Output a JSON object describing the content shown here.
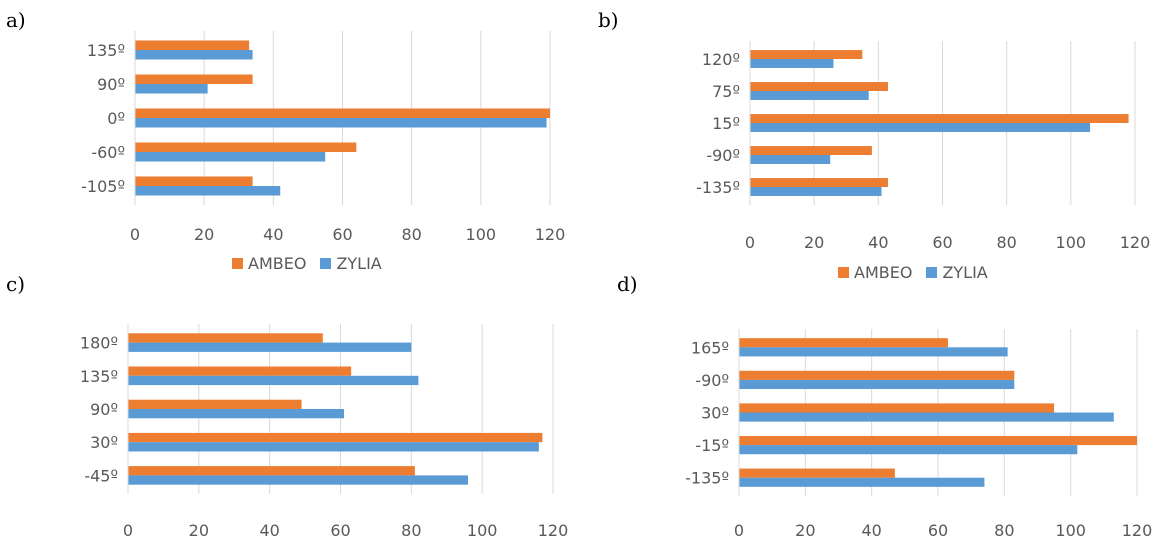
{
  "panels": [
    {
      "label": "a)"
    },
    {
      "label": "b)"
    },
    {
      "label": "c)"
    },
    {
      "label": "d)"
    }
  ],
  "legend": {
    "ambeo": "AMBEO",
    "zylia": "ZYLIA"
  },
  "colors": {
    "ambeo": "#ED7D31",
    "zylia": "#5B9BD5",
    "grid": "#D9D9D9",
    "tick": "#595959"
  },
  "chart_data": [
    {
      "type": "bar",
      "orientation": "horizontal",
      "categories": [
        "135º",
        "90º",
        "0º",
        "-60º",
        "-105º"
      ],
      "series": [
        {
          "name": "AMBEO",
          "values": [
            33,
            34,
            120,
            64,
            34
          ]
        },
        {
          "name": "ZYLIA",
          "values": [
            34,
            21,
            119,
            55,
            42
          ]
        }
      ],
      "xlim": [
        0,
        120
      ],
      "xticks": [
        "0",
        "20",
        "40",
        "60",
        "80",
        "100",
        "120"
      ],
      "grid": true,
      "legend_position": "bottom"
    },
    {
      "type": "bar",
      "orientation": "horizontal",
      "categories": [
        "120º",
        "75º",
        "15º",
        "-90º",
        "-135º"
      ],
      "series": [
        {
          "name": "AMBEO",
          "values": [
            35,
            43,
            118,
            38,
            43
          ]
        },
        {
          "name": "ZYLIA",
          "values": [
            26,
            37,
            106,
            25,
            41
          ]
        }
      ],
      "xlim": [
        0,
        120
      ],
      "xticks": [
        "0",
        "20",
        "40",
        "60",
        "80",
        "100",
        "120"
      ],
      "grid": true,
      "legend_position": "bottom"
    },
    {
      "type": "bar",
      "orientation": "horizontal",
      "categories": [
        "180º",
        "135º",
        "90º",
        "30º",
        "-45º"
      ],
      "series": [
        {
          "name": "AMBEO",
          "values": [
            55,
            63,
            49,
            117,
            81
          ]
        },
        {
          "name": "ZYLIA",
          "values": [
            80,
            82,
            61,
            116,
            96
          ]
        }
      ],
      "xlim": [
        0,
        120
      ],
      "xticks": [
        "0",
        "20",
        "40",
        "60",
        "80",
        "100",
        "120"
      ],
      "grid": true,
      "legend_position": "none"
    },
    {
      "type": "bar",
      "orientation": "horizontal",
      "categories": [
        "165º",
        "-90º",
        "30º",
        "-15º",
        "-135º"
      ],
      "series": [
        {
          "name": "AMBEO",
          "values": [
            63,
            83,
            95,
            120,
            47
          ]
        },
        {
          "name": "ZYLIA",
          "values": [
            81,
            83,
            113,
            102,
            74
          ]
        }
      ],
      "xlim": [
        0,
        120
      ],
      "xticks": [
        "0",
        "20",
        "40",
        "60",
        "80",
        "100",
        "120"
      ],
      "grid": true,
      "legend_position": "none"
    }
  ]
}
